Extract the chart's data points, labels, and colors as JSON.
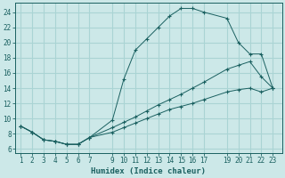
{
  "xlabel": "Humidex (Indice chaleur)",
  "background_color": "#cce8e8",
  "grid_color": "#aad4d4",
  "line_color": "#1a6060",
  "xticks": [
    1,
    2,
    3,
    4,
    5,
    6,
    7,
    9,
    10,
    11,
    12,
    13,
    14,
    15,
    16,
    17,
    19,
    20,
    21,
    22,
    23
  ],
  "yticks": [
    6,
    8,
    10,
    12,
    14,
    16,
    18,
    20,
    22,
    24
  ],
  "xlim": [
    0.5,
    23.8
  ],
  "ylim": [
    5.5,
    25.2
  ],
  "curve1_x": [
    1,
    2,
    3,
    4,
    5,
    6,
    7,
    9,
    10,
    11,
    12,
    13,
    14,
    15,
    16,
    17,
    19,
    20,
    21,
    22,
    23
  ],
  "curve1_y": [
    9.0,
    8.2,
    7.2,
    7.0,
    6.6,
    6.6,
    7.5,
    9.8,
    15.2,
    19.0,
    20.5,
    22.0,
    23.5,
    24.5,
    24.5,
    24.0,
    23.2,
    20.0,
    18.5,
    18.5,
    14.0
  ],
  "curve2_x": [
    1,
    2,
    3,
    4,
    5,
    6,
    7,
    9,
    10,
    11,
    12,
    13,
    14,
    15,
    16,
    17,
    19,
    20,
    21,
    22,
    23
  ],
  "curve2_y": [
    9.0,
    8.2,
    7.2,
    7.0,
    6.6,
    6.6,
    7.5,
    8.8,
    9.5,
    10.2,
    11.0,
    11.8,
    12.5,
    13.2,
    14.0,
    14.8,
    16.5,
    17.0,
    17.5,
    15.5,
    14.0
  ],
  "curve3_x": [
    1,
    2,
    3,
    4,
    5,
    6,
    7,
    9,
    10,
    11,
    12,
    13,
    14,
    15,
    16,
    17,
    19,
    20,
    21,
    22,
    23
  ],
  "curve3_y": [
    9.0,
    8.2,
    7.2,
    7.0,
    6.6,
    6.6,
    7.5,
    8.2,
    8.8,
    9.4,
    10.0,
    10.6,
    11.2,
    11.6,
    12.0,
    12.5,
    13.5,
    13.8,
    14.0,
    13.5,
    14.0
  ]
}
